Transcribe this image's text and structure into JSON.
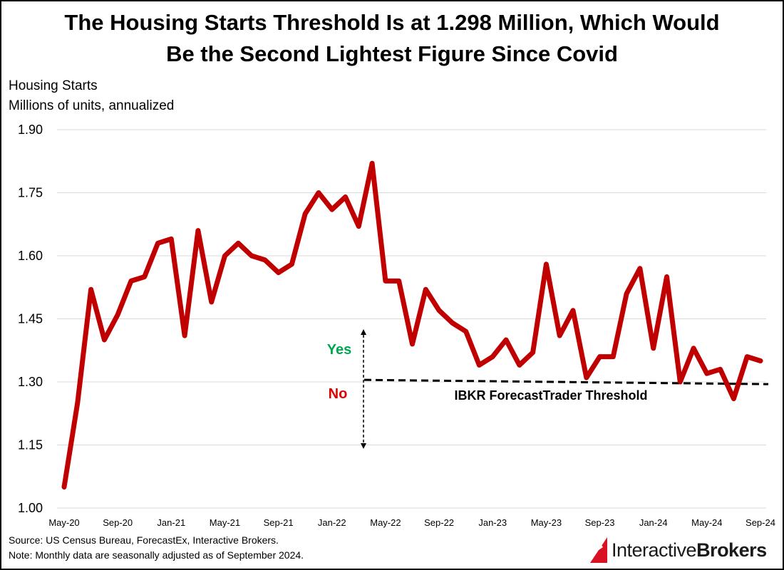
{
  "title_line1": "The Housing Starts Threshold Is at 1.298 Million, Which Would",
  "title_line2": "Be the Second Lightest Figure Since Covid",
  "subtitle_line1": "Housing Starts",
  "subtitle_line2": "Millions of units, annualized",
  "footer": {
    "source": "Source: US Census Bureau, ForecastEx, Interactive Brokers.",
    "note": "Note: Monthly data are seasonally adjusted as of September 2024."
  },
  "brand": {
    "part1": "Interactive",
    "part2": "Brokers"
  },
  "colors": {
    "series": "#c00000",
    "yes": "#00a650",
    "no": "#e00000",
    "grid": "#d9d9d9"
  },
  "annotations": {
    "yes": "Yes",
    "no": "No",
    "threshold_label": "IBKR ForecastTrader Threshold"
  },
  "chart_data": {
    "type": "line",
    "ylim": [
      1.0,
      1.9
    ],
    "yticks": [
      "1.00",
      "1.15",
      "1.30",
      "1.45",
      "1.60",
      "1.75",
      "1.90"
    ],
    "xticks": [
      "May-20",
      "Sep-20",
      "Jan-21",
      "May-21",
      "Sep-21",
      "Jan-22",
      "May-22",
      "Sep-22",
      "Jan-23",
      "May-23",
      "Sep-23",
      "Jan-24",
      "May-24",
      "Sep-24"
    ],
    "grid": true,
    "threshold": 1.298,
    "series": [
      {
        "values": [
          1.05,
          1.25,
          1.52,
          1.4,
          1.46,
          1.54,
          1.55,
          1.63,
          1.64,
          1.41,
          1.66,
          1.49,
          1.6,
          1.63,
          1.6,
          1.59,
          1.56,
          1.58,
          1.7,
          1.75,
          1.71,
          1.74,
          1.67,
          1.82,
          1.54,
          1.54,
          1.39,
          1.52,
          1.47,
          1.44,
          1.42,
          1.34,
          1.36,
          1.4,
          1.34,
          1.37,
          1.58,
          1.41,
          1.47,
          1.31,
          1.36,
          1.36,
          1.51,
          1.57,
          1.38,
          1.55,
          1.3,
          1.38,
          1.32,
          1.33,
          1.26,
          1.36,
          1.35
        ]
      }
    ]
  }
}
